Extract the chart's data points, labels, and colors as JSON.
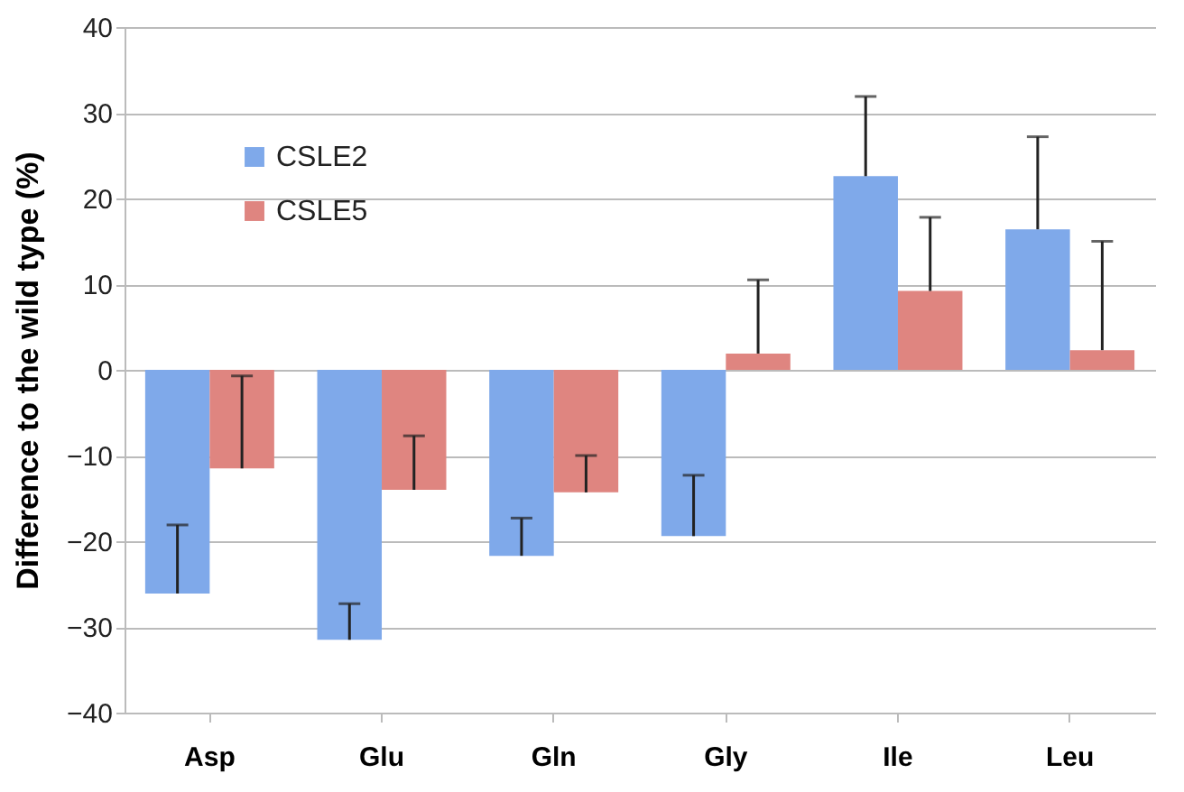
{
  "chart_data": {
    "type": "bar",
    "ylabel": "Difference to the wild type (%)",
    "categories": [
      "Asp",
      "Glu",
      "Gln",
      "Gly",
      "Ile",
      "Leu"
    ],
    "series": [
      {
        "name": "CSLE2",
        "color": "#7fa9ea",
        "values": [
          -26.1,
          -31.5,
          -21.7,
          -19.4,
          22.6,
          16.4
        ],
        "errors": [
          [
            -26.1,
            -18.1
          ],
          [
            -31.5,
            -27.3
          ],
          [
            -21.7,
            -17.3
          ],
          [
            -19.4,
            -12.3
          ],
          [
            22.6,
            31.9
          ],
          [
            16.4,
            27.2
          ]
        ]
      },
      {
        "name": "CSLE5",
        "color": "#df8580",
        "values": [
          -11.5,
          -14.0,
          -14.3,
          1.9,
          9.2,
          2.3
        ],
        "errors": [
          [
            -11.5,
            -0.7
          ],
          [
            -14.0,
            -7.7
          ],
          [
            -14.3,
            -10.0
          ],
          [
            1.9,
            10.5
          ],
          [
            9.2,
            17.8
          ],
          [
            2.3,
            15.0
          ]
        ]
      }
    ],
    "ylim": [
      -40,
      40
    ],
    "yticks": [
      -40,
      -30,
      -20,
      -10,
      0,
      10,
      20,
      30,
      40
    ],
    "grid": "y",
    "legend": "top left"
  }
}
